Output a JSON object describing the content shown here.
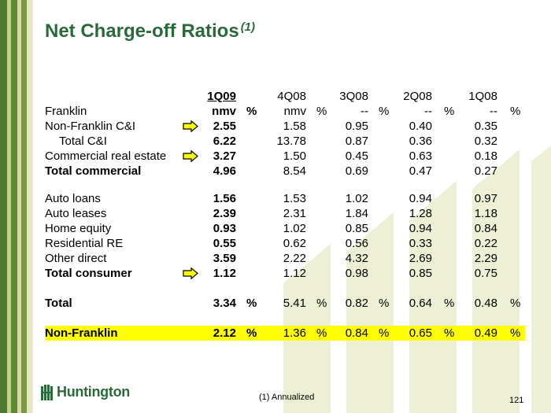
{
  "title": "Net Charge-off Ratios",
  "title_note": "(1)",
  "columns": [
    "1Q09",
    "4Q08",
    "3Q08",
    "2Q08",
    "1Q08"
  ],
  "rows": {
    "franklin": {
      "label": "Franklin",
      "v": [
        "nmv",
        "nmv",
        "--",
        "--",
        "--"
      ],
      "pct": [
        "%",
        "%",
        "%",
        "%",
        "%"
      ]
    },
    "nf_ci": {
      "label": "Non-Franklin C&I",
      "v": [
        "2.55",
        "1.58",
        "0.95",
        "0.40",
        "0.35"
      ]
    },
    "total_ci": {
      "label": "Total C&I",
      "v": [
        "6.22",
        "13.78",
        "0.87",
        "0.36",
        "0.32"
      ]
    },
    "cre": {
      "label": "Commercial real estate",
      "v": [
        "3.27",
        "1.50",
        "0.45",
        "0.63",
        "0.18"
      ]
    },
    "total_commercial": {
      "label": "Total commercial",
      "v": [
        "4.96",
        "8.54",
        "0.69",
        "0.47",
        "0.27"
      ]
    },
    "auto_loans": {
      "label": "Auto loans",
      "v": [
        "1.56",
        "1.53",
        "1.02",
        "0.94",
        "0.97"
      ]
    },
    "auto_leases": {
      "label": "Auto leases",
      "v": [
        "2.39",
        "2.31",
        "1.84",
        "1.28",
        "1.18"
      ]
    },
    "home_equity": {
      "label": "Home equity",
      "v": [
        "0.93",
        "1.02",
        "0.85",
        "0.94",
        "0.84"
      ]
    },
    "residential": {
      "label": "Residential RE",
      "v": [
        "0.55",
        "0.62",
        "0.56",
        "0.33",
        "0.22"
      ]
    },
    "other_direct": {
      "label": "Other direct",
      "v": [
        "3.59",
        "2.22",
        "4.32",
        "2.69",
        "2.29"
      ]
    },
    "total_consumer": {
      "label": "Total consumer",
      "v": [
        "1.12",
        "1.12",
        "0.98",
        "0.85",
        "0.75"
      ]
    },
    "total": {
      "label": "Total",
      "v": [
        "3.34",
        "5.41",
        "0.82",
        "0.64",
        "0.48"
      ],
      "pct": [
        "%",
        "%",
        "%",
        "%",
        "%"
      ]
    },
    "non_franklin": {
      "label": "Non-Franklin",
      "v": [
        "2.12",
        "1.36",
        "0.84",
        "0.65",
        "0.49"
      ],
      "pct": [
        "%",
        "%",
        "%",
        "%",
        "%"
      ]
    }
  },
  "colors": {
    "title": "#2a6a3a",
    "highlight": "#ffff00",
    "arrow_fill": "#ffff00",
    "stripe_dark": "#4d7a2e",
    "stripe_light": "#c8cf8a"
  },
  "logo_text": "Huntington",
  "footnote": "(1)  Annualized",
  "page_number": "121"
}
